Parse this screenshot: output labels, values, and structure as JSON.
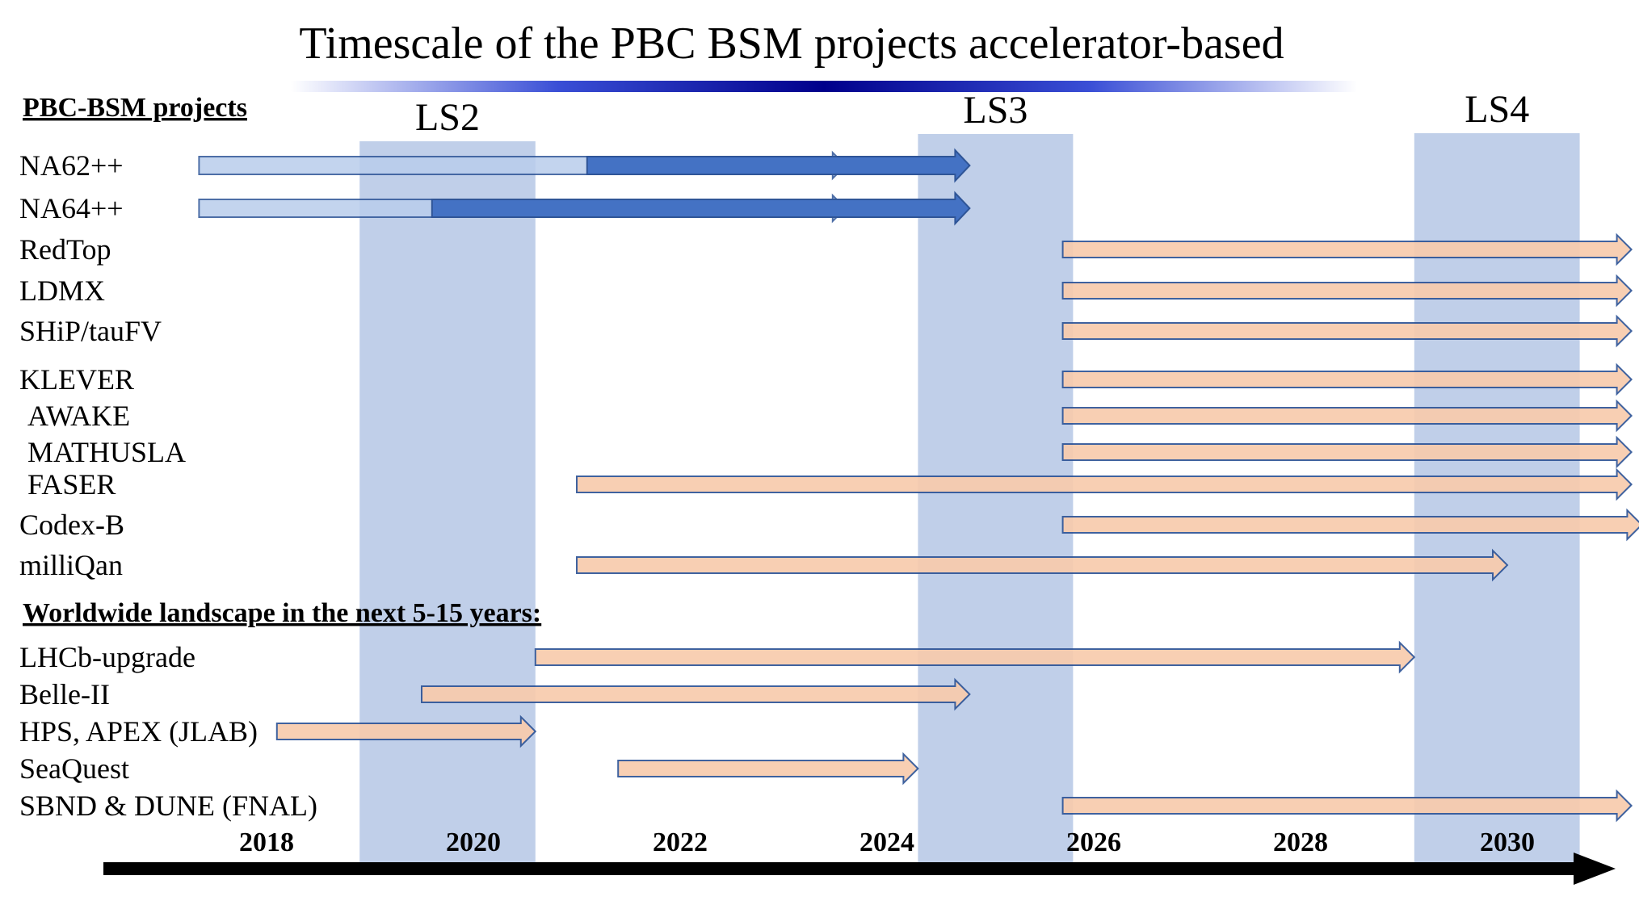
{
  "title": "Timescale of the PBC BSM projects accelerator-based",
  "colors": {
    "band": "#c0cfe9",
    "blue_solid": "#4472c4",
    "blue_light": "#b9cdec",
    "orange_fill": "#f8cbad",
    "outline": "#2f5597",
    "axis": "#000000"
  },
  "chart_data": {
    "type": "gantt",
    "title": "Timescale of the PBC BSM projects accelerator-based",
    "x_ticks": [
      "2018",
      "2020",
      "2022",
      "2024",
      "2026",
      "2028",
      "2030"
    ],
    "xlim": [
      2017.0,
      2031.4
    ],
    "shutdowns": [
      {
        "label": "LS2",
        "start": 2018.9,
        "end": 2020.6
      },
      {
        "label": "LS3",
        "start": 2024.3,
        "end": 2025.8
      },
      {
        "label": "LS4",
        "start": 2029.1,
        "end": 2030.7
      }
    ],
    "sections": [
      {
        "heading": "PBC-BSM projects",
        "projects": [
          {
            "name": "NA62++",
            "start": 2016.8,
            "mid": 2021.1,
            "end": 2023.6,
            "end2": 2024.8,
            "style": "blue"
          },
          {
            "name": "NA64++",
            "start": 2016.8,
            "mid": 2019.6,
            "end": 2023.6,
            "end2": 2024.8,
            "style": "blue"
          },
          {
            "name": "RedTop",
            "start": 2025.7,
            "end": 2031.2,
            "style": "orange"
          },
          {
            "name": "LDMX",
            "start": 2025.7,
            "end": 2031.2,
            "style": "orange"
          },
          {
            "name": "SHiP/tauFV",
            "start": 2025.7,
            "end": 2031.2,
            "style": "orange"
          },
          {
            "name": "KLEVER",
            "start": 2025.7,
            "end": 2031.2,
            "style": "orange"
          },
          {
            "name": "AWAKE",
            "start": 2025.7,
            "end": 2031.2,
            "style": "orange"
          },
          {
            "name": "MATHUSLA",
            "start": 2025.7,
            "end": 2031.2,
            "style": "orange"
          },
          {
            "name": "FASER",
            "start": 2021.0,
            "end": 2031.2,
            "style": "orange"
          },
          {
            "name": "Codex-B",
            "start": 2025.7,
            "end": 2031.3,
            "style": "orange"
          },
          {
            "name": "milliQan",
            "start": 2021.0,
            "end": 2030.0,
            "style": "orange"
          }
        ]
      },
      {
        "heading": "Worldwide landscape in the next 5-15 years:",
        "projects": [
          {
            "name": "LHCb-upgrade",
            "start": 2020.6,
            "end": 2029.1,
            "style": "orange"
          },
          {
            "name": "Belle-II",
            "start": 2019.5,
            "end": 2024.8,
            "style": "orange"
          },
          {
            "name": "HPS, APEX (JLAB)",
            "start": 2018.1,
            "end": 2020.6,
            "style": "orange"
          },
          {
            "name": "SeaQuest",
            "start": 2021.4,
            "end": 2024.3,
            "style": "orange"
          },
          {
            "name": "SBND & DUNE (FNAL)",
            "start": 2025.7,
            "end": 2031.2,
            "style": "orange"
          }
        ]
      }
    ]
  }
}
